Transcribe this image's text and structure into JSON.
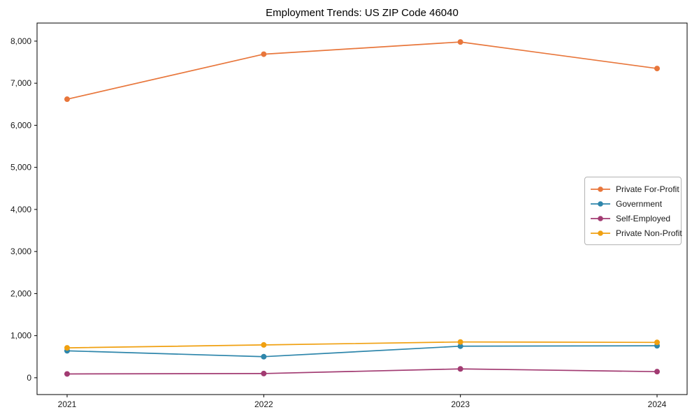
{
  "title": "Employment Trends: US ZIP Code 46040",
  "chart_data": {
    "type": "line",
    "categories": [
      "2021",
      "2022",
      "2023",
      "2024"
    ],
    "series": [
      {
        "name": "Private For-Profit",
        "color": "#E8763B",
        "values": [
          6620,
          7690,
          7980,
          7350
        ]
      },
      {
        "name": "Government",
        "color": "#2E86AB",
        "values": [
          640,
          500,
          750,
          760
        ]
      },
      {
        "name": "Self-Employed",
        "color": "#A23B72",
        "values": [
          90,
          100,
          210,
          145
        ]
      },
      {
        "name": "Private Non-Profit",
        "color": "#F0A010",
        "values": [
          710,
          780,
          850,
          840
        ]
      }
    ],
    "xlabel": "",
    "ylabel": "",
    "ylim": [
      -400,
      8430
    ],
    "yticks": [
      0,
      1000,
      2000,
      3000,
      4000,
      5000,
      6000,
      7000,
      8000
    ],
    "ytick_labels": [
      "0",
      "1,000",
      "2,000",
      "3,000",
      "4,000",
      "5,000",
      "6,000",
      "7,000",
      "8,000"
    ],
    "grid": false,
    "legend_position": "center-right",
    "marker": "circle",
    "axis_color": "#000000"
  }
}
